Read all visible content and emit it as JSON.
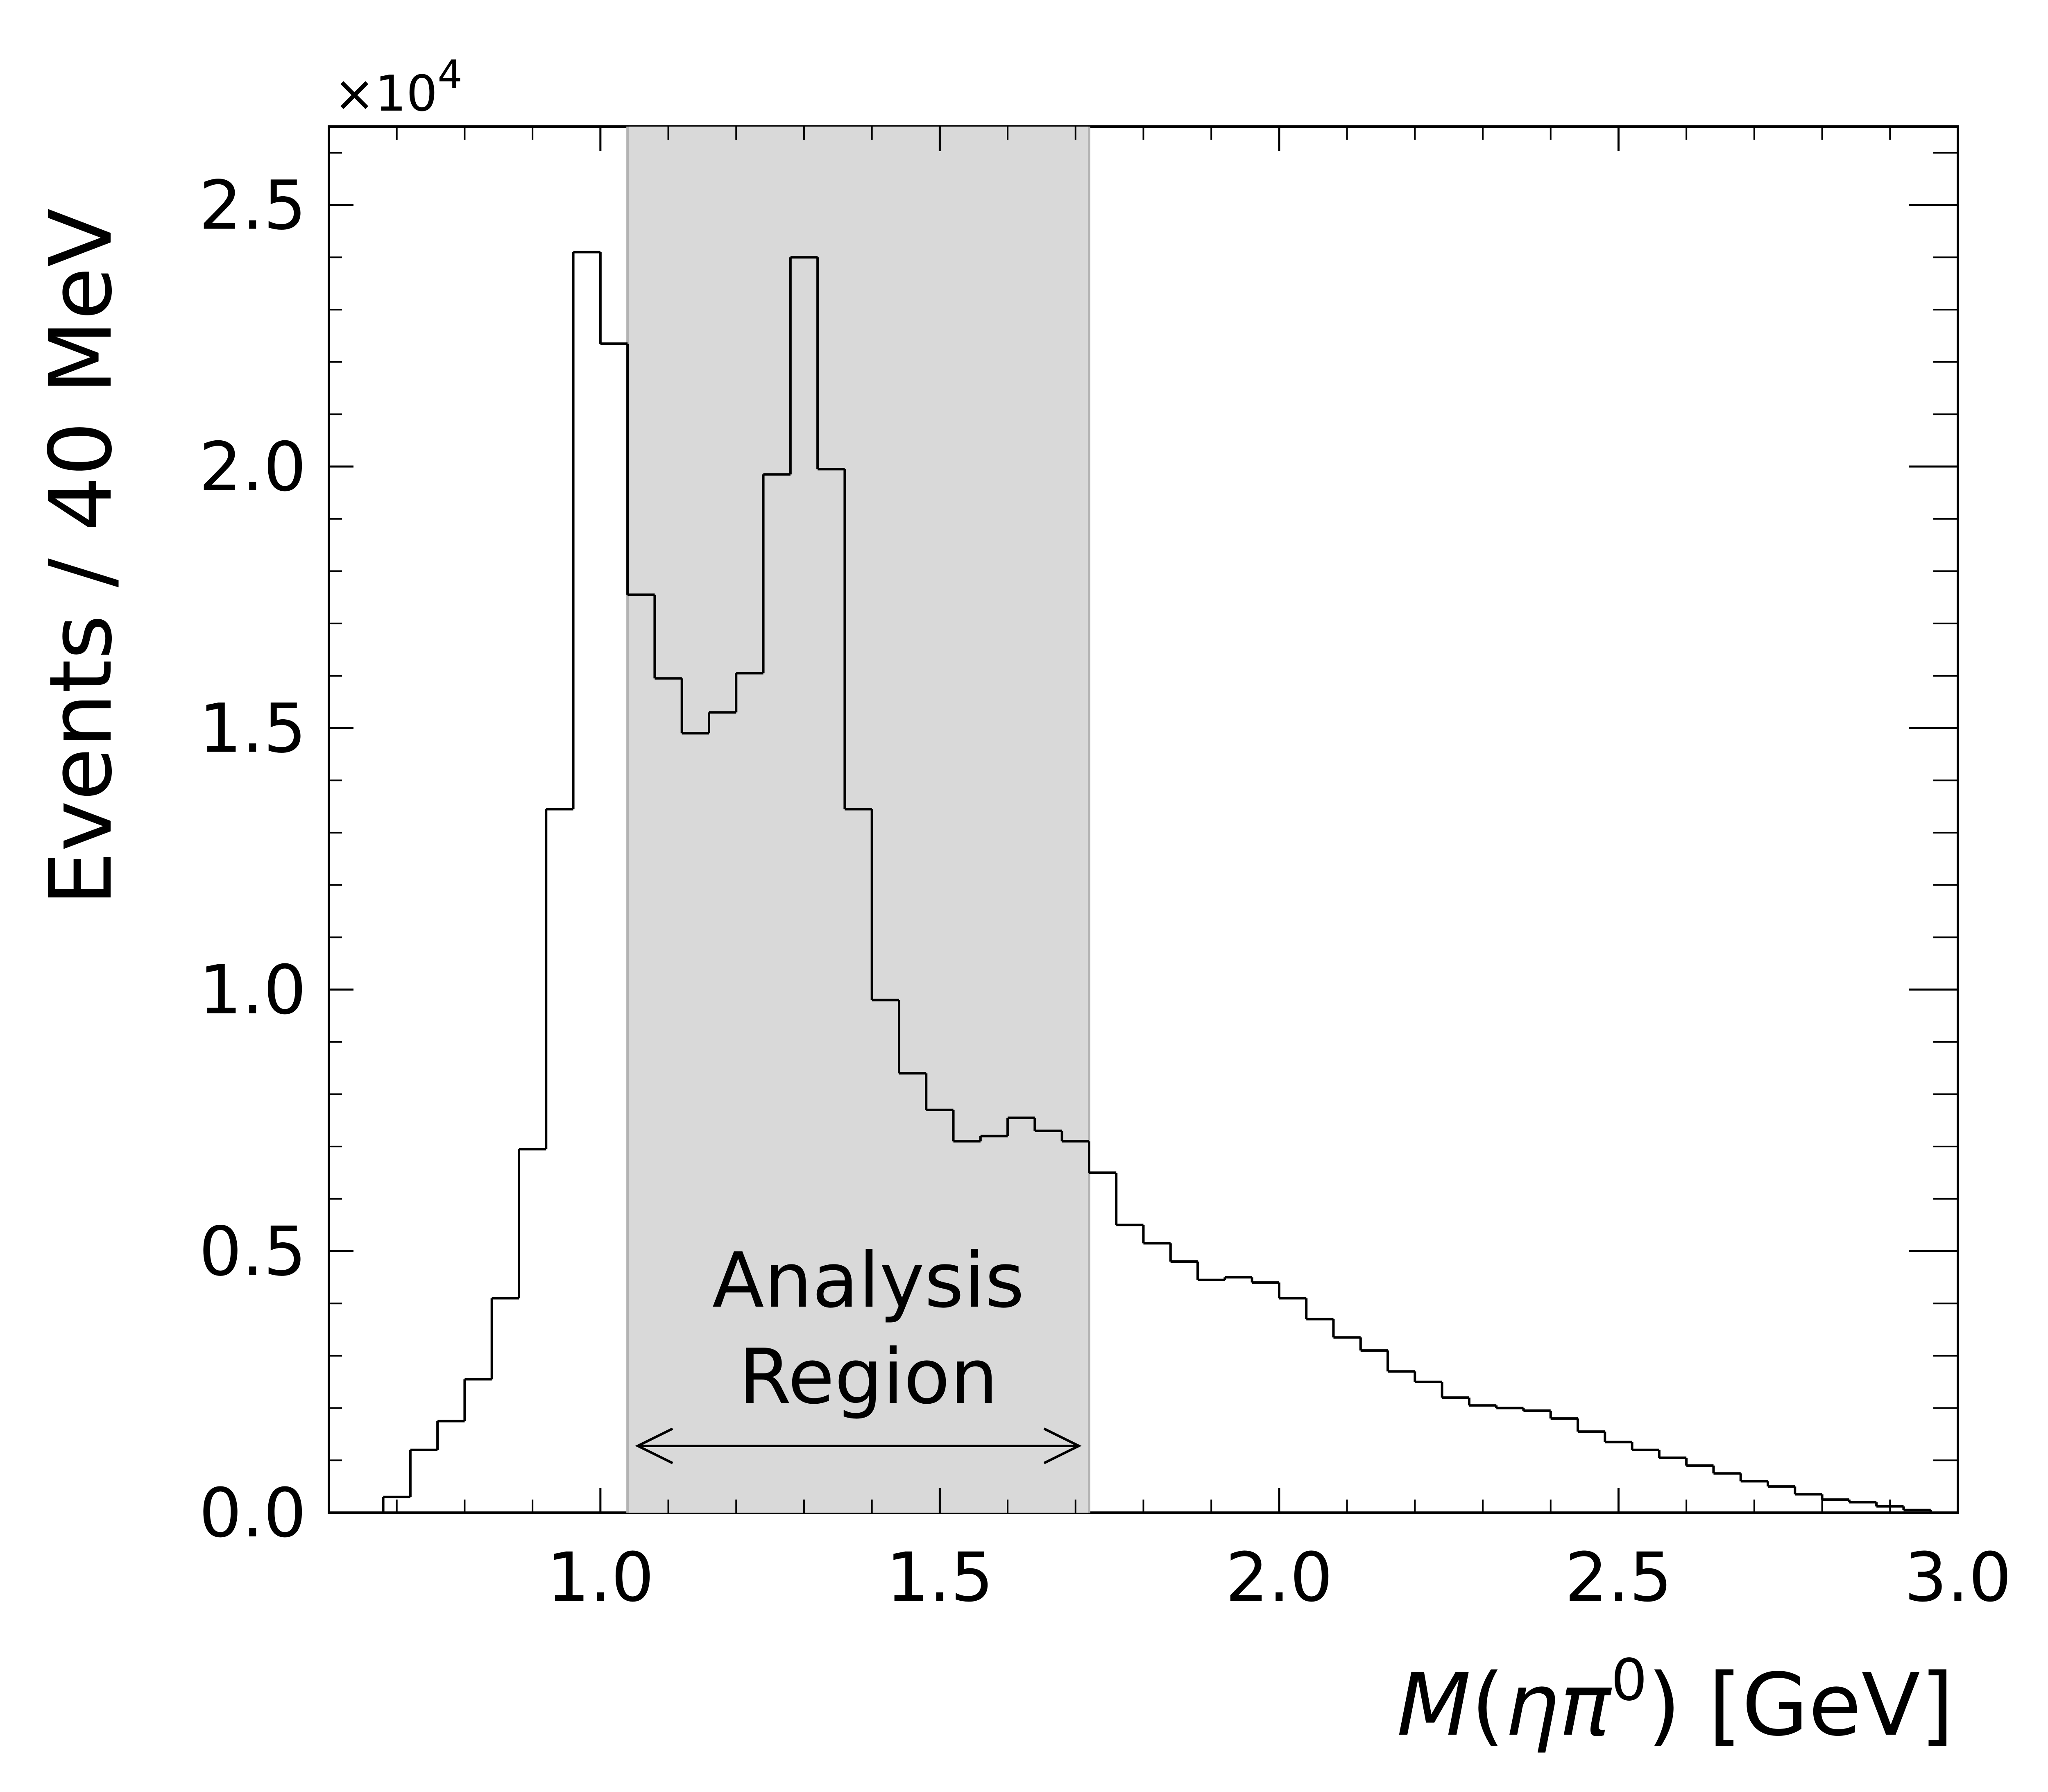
{
  "chart_data": {
    "type": "histogram",
    "bin_width": 0.04,
    "bin_edges_start": 0.68,
    "x": [
      0.7,
      0.74,
      0.78,
      0.82,
      0.86,
      0.9,
      0.94,
      0.98,
      1.02,
      1.06,
      1.1,
      1.14,
      1.18,
      1.22,
      1.26,
      1.3,
      1.34,
      1.38,
      1.42,
      1.46,
      1.5,
      1.54,
      1.58,
      1.62,
      1.66,
      1.7,
      1.74,
      1.78,
      1.82,
      1.86,
      1.9,
      1.94,
      1.98,
      2.02,
      2.06,
      2.1,
      2.14,
      2.18,
      2.22,
      2.26,
      2.3,
      2.34,
      2.38,
      2.42,
      2.46,
      2.5,
      2.54,
      2.58,
      2.62,
      2.66,
      2.7,
      2.74,
      2.78,
      2.82,
      2.86,
      2.9,
      2.94
    ],
    "values": [
      300,
      1200,
      1750,
      2550,
      4100,
      6950,
      13450,
      24100,
      22350,
      17550,
      15950,
      14900,
      15300,
      16050,
      19850,
      24000,
      19950,
      13450,
      9800,
      8400,
      7700,
      7100,
      7200,
      7550,
      7300,
      7100,
      6500,
      5500,
      5150,
      4800,
      4450,
      4500,
      4400,
      4100,
      3700,
      3350,
      3100,
      2700,
      2500,
      2200,
      2050,
      2000,
      1950,
      1800,
      1550,
      1350,
      1200,
      1050,
      900,
      750,
      600,
      500,
      350,
      250,
      200,
      120,
      50
    ],
    "x_label_prefix": "M",
    "x_label_eta": "η",
    "x_label_pi": "π",
    "x_label_sup": "0",
    "x_label_suffix": " [GeV]",
    "x_label_open": "(",
    "x_label_close": ")",
    "ylabel": "Events / 40 MeV",
    "y_multiplier_prefix": "×10",
    "y_multiplier_exp": "4",
    "xlim": [
      0.6,
      3.0
    ],
    "ylim": [
      0,
      26500
    ],
    "x_ticks": [
      1.0,
      1.5,
      2.0,
      2.5,
      3.0
    ],
    "x_tick_labels": [
      "1.0",
      "1.5",
      "2.0",
      "2.5",
      "3.0"
    ],
    "y_ticks": [
      0,
      5000,
      10000,
      15000,
      20000,
      25000
    ],
    "y_tick_labels": [
      "0.0",
      "0.5",
      "1.0",
      "1.5",
      "2.0",
      "2.5"
    ],
    "x_minor_step": 0.1,
    "y_minor_step": 1000,
    "region": {
      "x_range": [
        1.04,
        1.72
      ],
      "label_line1": "Analysis",
      "label_line2": "Region",
      "fill_color": "#d9d9d9",
      "edge_color": "#b3b3b3"
    },
    "line_color": "#000000",
    "grid": false
  }
}
